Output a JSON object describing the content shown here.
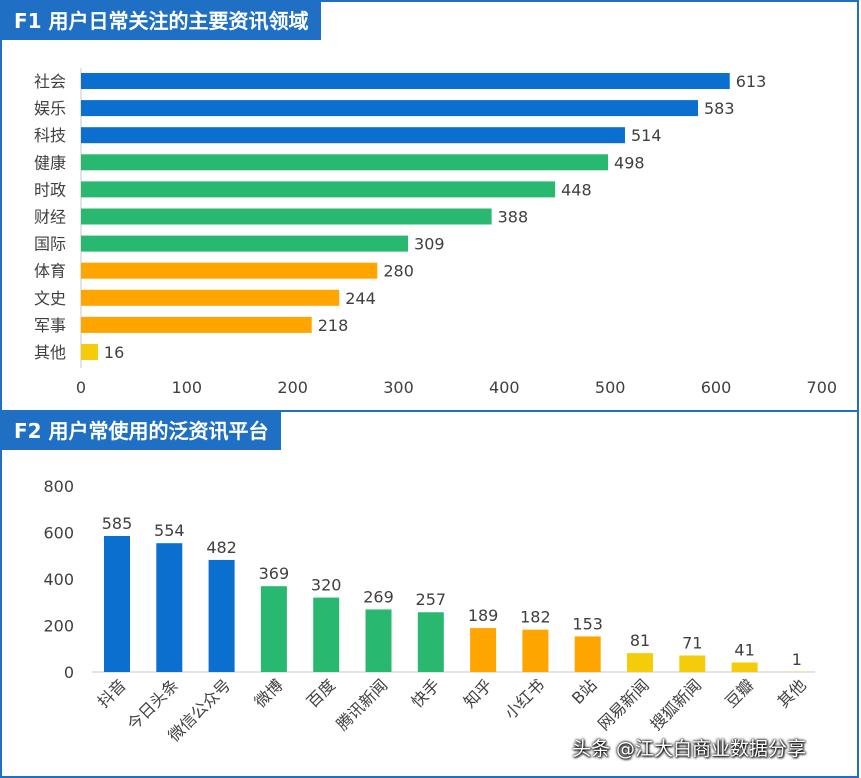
{
  "chart_data": [
    {
      "type": "bar",
      "orientation": "horizontal",
      "title": "F1 用户日常关注的主要资讯领域",
      "categories": [
        "社会",
        "娱乐",
        "科技",
        "健康",
        "时政",
        "财经",
        "国际",
        "体育",
        "文史",
        "军事",
        "其他"
      ],
      "values": [
        613,
        583,
        514,
        498,
        448,
        388,
        309,
        280,
        244,
        218,
        16
      ],
      "colors": [
        "#0a6fcf",
        "#0a6fcf",
        "#0a6fcf",
        "#28b86f",
        "#28b86f",
        "#28b86f",
        "#28b86f",
        "#ffa500",
        "#ffa500",
        "#ffa500",
        "#f5cc0a"
      ],
      "xlim": [
        0,
        700
      ],
      "xticks": [
        "0",
        "100",
        "200",
        "300",
        "400",
        "500",
        "600",
        "700"
      ]
    },
    {
      "type": "bar",
      "orientation": "vertical",
      "title": "F2 用户常使用的泛资讯平台",
      "categories": [
        "抖音",
        "今日头条",
        "微信公众号",
        "微博",
        "百度",
        "腾讯新闻",
        "快手",
        "知乎",
        "小红书",
        "B站",
        "网易新闻",
        "搜狐新闻",
        "豆瓣",
        "其他"
      ],
      "values": [
        585,
        554,
        482,
        369,
        320,
        269,
        257,
        189,
        182,
        153,
        81,
        71,
        41,
        1
      ],
      "colors": [
        "#0a6fcf",
        "#0a6fcf",
        "#0a6fcf",
        "#28b86f",
        "#28b86f",
        "#28b86f",
        "#28b86f",
        "#ffa500",
        "#ffa500",
        "#ffa500",
        "#f5cc0a",
        "#f5cc0a",
        "#f5cc0a",
        "#f5cc0a"
      ],
      "ylim": [
        0,
        800
      ],
      "yticks": [
        "0",
        "200",
        "400",
        "600",
        "800"
      ]
    }
  ],
  "watermark": "头条 @江大白商业数据分享"
}
